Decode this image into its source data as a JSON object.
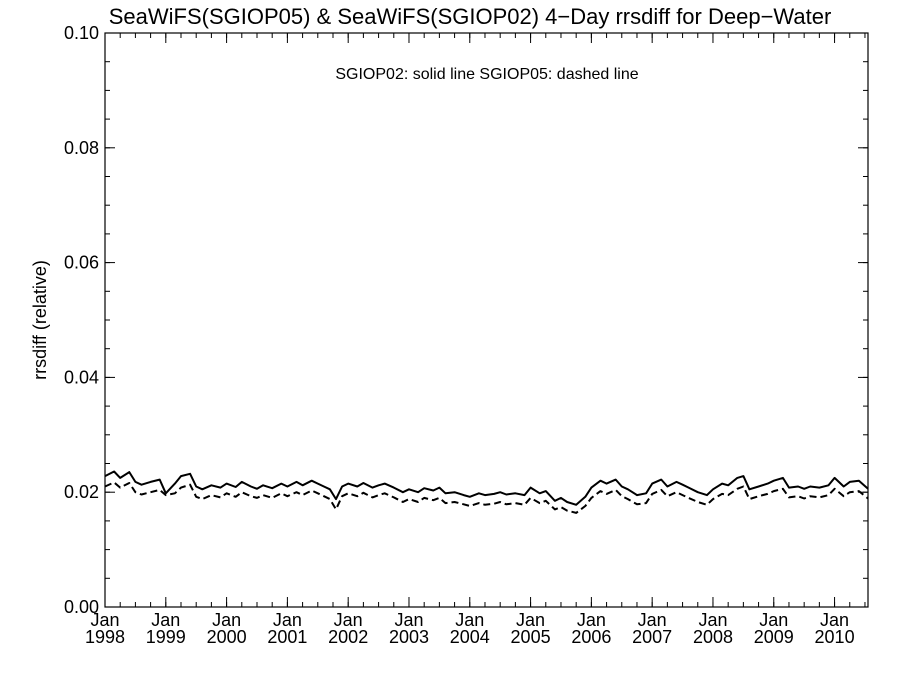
{
  "chart_data": {
    "type": "line",
    "title": "SeaWiFS(SGIOP05) & SeaWiFS(SGIOP02) 4−Day rrsdiff for Deep−Water",
    "xlabel": "",
    "ylabel": "rrsdiff (relative)",
    "annotation": "SGIOP02: solid line   SGIOP05: dashed line",
    "xlim": [
      1998.0,
      2010.55
    ],
    "ylim": [
      0.0,
      0.1
    ],
    "yticks": [
      "0.00",
      "0.02",
      "0.04",
      "0.06",
      "0.08",
      "0.10"
    ],
    "xticks": [
      {
        "month": "Jan",
        "year": "1998"
      },
      {
        "month": "Jan",
        "year": "1999"
      },
      {
        "month": "Jan",
        "year": "2000"
      },
      {
        "month": "Jan",
        "year": "2001"
      },
      {
        "month": "Jan",
        "year": "2002"
      },
      {
        "month": "Jan",
        "year": "2003"
      },
      {
        "month": "Jan",
        "year": "2004"
      },
      {
        "month": "Jan",
        "year": "2005"
      },
      {
        "month": "Jan",
        "year": "2006"
      },
      {
        "month": "Jan",
        "year": "2007"
      },
      {
        "month": "Jan",
        "year": "2008"
      },
      {
        "month": "Jan",
        "year": "2009"
      },
      {
        "month": "Jan",
        "year": "2010"
      }
    ],
    "grid": false,
    "series": [
      {
        "name": "SGIOP02",
        "style": "solid",
        "x": [
          1998.0,
          1998.15,
          1998.25,
          1998.4,
          1998.5,
          1998.6,
          1998.75,
          1998.9,
          1999.0,
          1999.15,
          1999.25,
          1999.4,
          1999.5,
          1999.6,
          1999.75,
          1999.9,
          2000.0,
          2000.15,
          2000.25,
          2000.4,
          2000.5,
          2000.6,
          2000.75,
          2000.9,
          2001.0,
          2001.15,
          2001.25,
          2001.4,
          2001.5,
          2001.6,
          2001.7,
          2001.8,
          2001.9,
          2002.0,
          2002.15,
          2002.25,
          2002.4,
          2002.5,
          2002.6,
          2002.75,
          2002.9,
          2003.0,
          2003.15,
          2003.25,
          2003.4,
          2003.5,
          2003.6,
          2003.75,
          2003.9,
          2004.0,
          2004.15,
          2004.25,
          2004.4,
          2004.5,
          2004.6,
          2004.75,
          2004.9,
          2005.0,
          2005.15,
          2005.25,
          2005.4,
          2005.5,
          2005.6,
          2005.75,
          2005.9,
          2006.0,
          2006.15,
          2006.25,
          2006.4,
          2006.5,
          2006.6,
          2006.75,
          2006.9,
          2007.0,
          2007.15,
          2007.25,
          2007.4,
          2007.5,
          2007.6,
          2007.75,
          2007.9,
          2008.0,
          2008.15,
          2008.25,
          2008.4,
          2008.5,
          2008.6,
          2008.75,
          2008.9,
          2009.0,
          2009.15,
          2009.25,
          2009.4,
          2009.5,
          2009.6,
          2009.75,
          2009.9,
          2010.0,
          2010.15,
          2010.25,
          2010.4,
          2010.55
        ],
        "values": [
          0.0228,
          0.0236,
          0.0225,
          0.0235,
          0.0218,
          0.0213,
          0.0218,
          0.0222,
          0.0198,
          0.0215,
          0.0228,
          0.0232,
          0.021,
          0.0205,
          0.0212,
          0.0208,
          0.0215,
          0.0209,
          0.0218,
          0.021,
          0.0206,
          0.0212,
          0.0207,
          0.0215,
          0.021,
          0.0218,
          0.0212,
          0.022,
          0.0215,
          0.021,
          0.0205,
          0.0188,
          0.021,
          0.0215,
          0.021,
          0.0216,
          0.0208,
          0.0212,
          0.0215,
          0.0208,
          0.02,
          0.0205,
          0.02,
          0.0207,
          0.0203,
          0.0208,
          0.0198,
          0.02,
          0.0195,
          0.0192,
          0.0198,
          0.0195,
          0.0197,
          0.02,
          0.0196,
          0.0198,
          0.0195,
          0.0208,
          0.0198,
          0.0202,
          0.0185,
          0.019,
          0.0183,
          0.0178,
          0.0192,
          0.0208,
          0.022,
          0.0215,
          0.0222,
          0.021,
          0.0205,
          0.0195,
          0.0198,
          0.0215,
          0.0222,
          0.021,
          0.0218,
          0.0213,
          0.0208,
          0.02,
          0.0195,
          0.0205,
          0.0215,
          0.0212,
          0.0225,
          0.0228,
          0.0205,
          0.021,
          0.0215,
          0.022,
          0.0225,
          0.0208,
          0.021,
          0.0206,
          0.021,
          0.0208,
          0.0212,
          0.0225,
          0.021,
          0.0218,
          0.022,
          0.0206
        ]
      },
      {
        "name": "SGIOP05",
        "style": "dashed",
        "x": [
          1998.0,
          1998.15,
          1998.25,
          1998.4,
          1998.5,
          1998.6,
          1998.75,
          1998.9,
          1999.0,
          1999.15,
          1999.25,
          1999.4,
          1999.5,
          1999.6,
          1999.75,
          1999.9,
          2000.0,
          2000.15,
          2000.25,
          2000.4,
          2000.5,
          2000.6,
          2000.75,
          2000.9,
          2001.0,
          2001.15,
          2001.25,
          2001.4,
          2001.5,
          2001.6,
          2001.7,
          2001.8,
          2001.9,
          2002.0,
          2002.15,
          2002.25,
          2002.4,
          2002.5,
          2002.6,
          2002.75,
          2002.9,
          2003.0,
          2003.15,
          2003.25,
          2003.4,
          2003.5,
          2003.6,
          2003.75,
          2003.9,
          2004.0,
          2004.15,
          2004.25,
          2004.4,
          2004.5,
          2004.6,
          2004.75,
          2004.9,
          2005.0,
          2005.15,
          2005.25,
          2005.4,
          2005.5,
          2005.6,
          2005.75,
          2005.9,
          2006.0,
          2006.15,
          2006.25,
          2006.4,
          2006.5,
          2006.6,
          2006.75,
          2006.9,
          2007.0,
          2007.15,
          2007.25,
          2007.4,
          2007.5,
          2007.6,
          2007.75,
          2007.9,
          2008.0,
          2008.15,
          2008.25,
          2008.4,
          2008.5,
          2008.6,
          2008.75,
          2008.9,
          2009.0,
          2009.15,
          2009.25,
          2009.4,
          2009.5,
          2009.6,
          2009.75,
          2009.9,
          2010.0,
          2010.15,
          2010.25,
          2010.4,
          2010.55
        ],
        "values": [
          0.021,
          0.0217,
          0.0208,
          0.0216,
          0.02,
          0.0196,
          0.02,
          0.0204,
          0.0195,
          0.0198,
          0.0208,
          0.0213,
          0.0192,
          0.0188,
          0.0195,
          0.0191,
          0.0198,
          0.0192,
          0.02,
          0.0193,
          0.019,
          0.0195,
          0.019,
          0.0198,
          0.0193,
          0.02,
          0.0195,
          0.0203,
          0.0198,
          0.0193,
          0.0188,
          0.017,
          0.0193,
          0.0198,
          0.0193,
          0.0199,
          0.0191,
          0.0195,
          0.0198,
          0.0191,
          0.0183,
          0.0188,
          0.0183,
          0.019,
          0.0186,
          0.019,
          0.0181,
          0.0183,
          0.0179,
          0.0176,
          0.0181,
          0.0178,
          0.018,
          0.0183,
          0.0179,
          0.0181,
          0.0178,
          0.019,
          0.0181,
          0.0185,
          0.017,
          0.0174,
          0.0168,
          0.0164,
          0.0176,
          0.019,
          0.0202,
          0.0197,
          0.0204,
          0.0193,
          0.0188,
          0.0179,
          0.0181,
          0.0197,
          0.0204,
          0.0193,
          0.02,
          0.0195,
          0.019,
          0.0183,
          0.0178,
          0.0188,
          0.0197,
          0.0195,
          0.0206,
          0.021,
          0.0188,
          0.0193,
          0.0197,
          0.0202,
          0.0206,
          0.0191,
          0.0193,
          0.0189,
          0.0193,
          0.0191,
          0.0195,
          0.0206,
          0.0193,
          0.02,
          0.0202,
          0.0189
        ]
      }
    ]
  }
}
